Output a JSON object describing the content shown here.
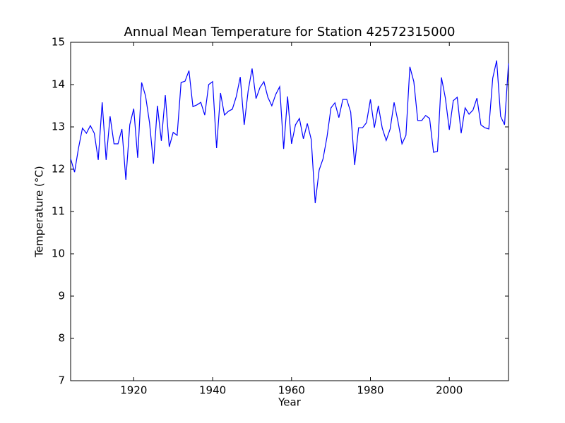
{
  "chart_data": {
    "type": "line",
    "title": "Annual Mean Temperature for Station 42572315000",
    "x_label": "Year",
    "y_label": "Temperature (°C)",
    "x": [
      1904,
      1905,
      1906,
      1907,
      1908,
      1909,
      1910,
      1911,
      1912,
      1913,
      1914,
      1915,
      1916,
      1917,
      1918,
      1919,
      1920,
      1921,
      1922,
      1923,
      1924,
      1925,
      1926,
      1927,
      1928,
      1929,
      1930,
      1931,
      1932,
      1933,
      1934,
      1935,
      1936,
      1937,
      1938,
      1939,
      1940,
      1941,
      1942,
      1943,
      1944,
      1945,
      1946,
      1947,
      1948,
      1949,
      1950,
      1951,
      1952,
      1953,
      1954,
      1955,
      1956,
      1957,
      1958,
      1959,
      1960,
      1961,
      1962,
      1963,
      1964,
      1965,
      1966,
      1967,
      1968,
      1969,
      1970,
      1971,
      1972,
      1973,
      1974,
      1975,
      1976,
      1977,
      1978,
      1979,
      1980,
      1981,
      1982,
      1983,
      1984,
      1985,
      1986,
      1987,
      1988,
      1989,
      1990,
      1991,
      1992,
      1993,
      1994,
      1995,
      1996,
      1997,
      1998,
      1999,
      2000,
      2001,
      2002,
      2003,
      2004,
      2005,
      2006,
      2007,
      2008,
      2009,
      2010,
      2011,
      2012,
      2013,
      2014,
      2015
    ],
    "series": [
      {
        "color": "#0000ff",
        "values": [
          12.25,
          11.93,
          12.5,
          12.97,
          12.85,
          13.03,
          12.85,
          12.22,
          13.58,
          12.22,
          13.25,
          12.6,
          12.6,
          12.95,
          11.75,
          13.05,
          13.43,
          12.27,
          14.05,
          13.73,
          13.1,
          12.13,
          13.5,
          12.67,
          13.75,
          12.53,
          12.87,
          12.8,
          14.05,
          14.08,
          14.33,
          13.48,
          13.52,
          13.58,
          13.28,
          14.0,
          14.07,
          12.5,
          13.8,
          13.28,
          13.37,
          13.42,
          13.72,
          14.18,
          13.05,
          13.85,
          14.38,
          13.67,
          13.93,
          14.07,
          13.7,
          13.5,
          13.77,
          13.95,
          12.48,
          13.72,
          12.6,
          13.05,
          13.2,
          12.72,
          13.08,
          12.7,
          11.2,
          11.98,
          12.25,
          12.77,
          13.45,
          13.57,
          13.22,
          13.65,
          13.65,
          13.35,
          12.1,
          12.98,
          12.98,
          13.1,
          13.65,
          12.98,
          13.5,
          12.97,
          12.68,
          12.95,
          13.58,
          13.12,
          12.6,
          12.8,
          14.42,
          14.07,
          13.15,
          13.15,
          13.27,
          13.2,
          12.4,
          12.42,
          14.17,
          13.68,
          12.93,
          13.62,
          13.7,
          12.85,
          13.45,
          13.3,
          13.4,
          13.68,
          13.05,
          12.98,
          12.95,
          14.15,
          14.57,
          13.25,
          13.05,
          14.5
        ]
      }
    ],
    "xlim": [
      1904,
      2015
    ],
    "xticks": [
      1920,
      1940,
      1960,
      1980,
      2000
    ],
    "ylim": [
      7,
      15
    ],
    "yticks": [
      7,
      8,
      9,
      10,
      11,
      12,
      13,
      14,
      15
    ]
  }
}
